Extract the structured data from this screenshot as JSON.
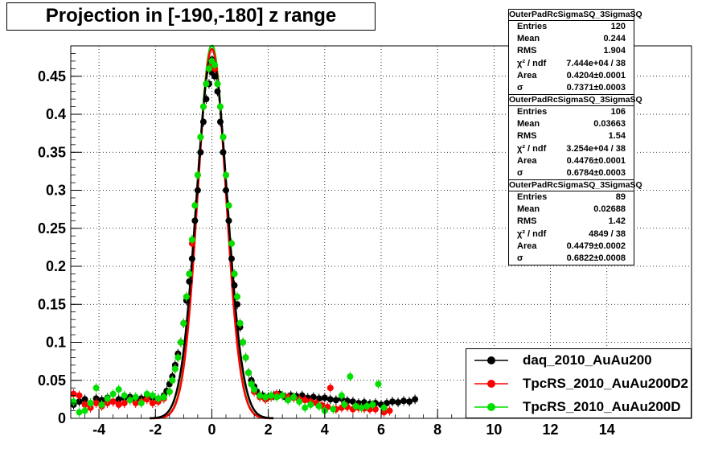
{
  "title": "Projection in [-190,-180] z range",
  "chart_data": {
    "type": "scatter",
    "xlim": [
      -5,
      17
    ],
    "ylim": [
      0,
      0.49
    ],
    "x_ticks": [
      -4,
      -2,
      0,
      2,
      4,
      6,
      8,
      10,
      12,
      14
    ],
    "y_ticks": [
      0,
      0.05,
      0.1,
      0.15,
      0.2,
      0.25,
      0.3,
      0.35,
      0.4,
      0.45
    ],
    "y_tick_labels": [
      "0",
      "0.05",
      "0.1",
      "0.15",
      "0.2",
      "0.25",
      "0.3",
      "0.35",
      "0.4",
      "0.45"
    ],
    "grid": true,
    "legend_position": "bottom-right",
    "series": [
      {
        "name": "daq_2010_AuAu200",
        "color": "#000000",
        "sigma": 0.7371,
        "points": [
          [
            -4.9,
            0.018
          ],
          [
            -4.7,
            0.022
          ],
          [
            -4.5,
            0.025
          ],
          [
            -4.3,
            0.02
          ],
          [
            -4.1,
            0.026
          ],
          [
            -3.9,
            0.024
          ],
          [
            -3.7,
            0.027
          ],
          [
            -3.5,
            0.022
          ],
          [
            -3.3,
            0.025
          ],
          [
            -3.1,
            0.027
          ],
          [
            -2.9,
            0.028
          ],
          [
            -2.7,
            0.024
          ],
          [
            -2.5,
            0.026
          ],
          [
            -2.3,
            0.028
          ],
          [
            -2.1,
            0.027
          ],
          [
            -1.9,
            0.026
          ],
          [
            -1.7,
            0.03
          ],
          [
            -1.6,
            0.036
          ],
          [
            -1.5,
            0.045
          ],
          [
            -1.4,
            0.055
          ],
          [
            -1.3,
            0.07
          ],
          [
            -1.2,
            0.085
          ],
          [
            -1.1,
            0.1
          ],
          [
            -1.0,
            0.125
          ],
          [
            -0.9,
            0.155
          ],
          [
            -0.8,
            0.18
          ],
          [
            -0.7,
            0.21
          ],
          [
            -0.6,
            0.26
          ],
          [
            -0.5,
            0.3
          ],
          [
            -0.4,
            0.35
          ],
          [
            -0.3,
            0.39
          ],
          [
            -0.2,
            0.42
          ],
          [
            -0.1,
            0.44
          ],
          [
            0.0,
            0.455
          ],
          [
            0.1,
            0.45
          ],
          [
            0.2,
            0.43
          ],
          [
            0.3,
            0.39
          ],
          [
            0.4,
            0.35
          ],
          [
            0.5,
            0.3
          ],
          [
            0.6,
            0.26
          ],
          [
            0.7,
            0.21
          ],
          [
            0.8,
            0.175
          ],
          [
            0.9,
            0.15
          ],
          [
            1.0,
            0.12
          ],
          [
            1.1,
            0.1
          ],
          [
            1.2,
            0.08
          ],
          [
            1.3,
            0.06
          ],
          [
            1.4,
            0.05
          ],
          [
            1.5,
            0.042
          ],
          [
            1.6,
            0.035
          ],
          [
            1.8,
            0.03
          ],
          [
            2.0,
            0.028
          ],
          [
            2.2,
            0.03
          ],
          [
            2.4,
            0.032
          ],
          [
            2.6,
            0.028
          ],
          [
            2.8,
            0.03
          ],
          [
            3.0,
            0.029
          ],
          [
            3.2,
            0.03
          ],
          [
            3.4,
            0.027
          ],
          [
            3.6,
            0.028
          ],
          [
            3.8,
            0.026
          ],
          [
            4.0,
            0.027
          ],
          [
            4.2,
            0.025
          ],
          [
            4.4,
            0.024
          ],
          [
            4.6,
            0.026
          ],
          [
            4.8,
            0.023
          ],
          [
            5.0,
            0.022
          ],
          [
            5.2,
            0.02
          ],
          [
            5.4,
            0.021
          ],
          [
            5.6,
            0.019
          ],
          [
            5.8,
            0.02
          ],
          [
            6.0,
            0.018
          ],
          [
            6.2,
            0.02
          ],
          [
            6.4,
            0.022
          ],
          [
            6.6,
            0.021
          ],
          [
            6.8,
            0.023
          ],
          [
            7.0,
            0.022
          ],
          [
            7.2,
            0.025
          ]
        ]
      },
      {
        "name": "TpcRS_2010_AuAu200D2",
        "color": "#ff0000",
        "sigma": 0.6784,
        "points": [
          [
            -4.9,
            0.032
          ],
          [
            -4.7,
            0.03
          ],
          [
            -4.5,
            0.018
          ],
          [
            -4.3,
            0.014
          ],
          [
            -4.1,
            0.02
          ],
          [
            -3.9,
            0.016
          ],
          [
            -3.7,
            0.02
          ],
          [
            -3.5,
            0.022
          ],
          [
            -3.3,
            0.018
          ],
          [
            -3.1,
            0.02
          ],
          [
            -2.9,
            0.024
          ],
          [
            -2.7,
            0.02
          ],
          [
            -2.5,
            0.022
          ],
          [
            -2.3,
            0.025
          ],
          [
            -2.1,
            0.02
          ],
          [
            -1.9,
            0.022
          ],
          [
            -1.7,
            0.026
          ],
          [
            -1.5,
            0.035
          ],
          [
            -1.4,
            0.05
          ],
          [
            -1.3,
            0.065
          ],
          [
            -1.2,
            0.08
          ],
          [
            -1.1,
            0.1
          ],
          [
            -1.0,
            0.125
          ],
          [
            -0.9,
            0.16
          ],
          [
            -0.8,
            0.19
          ],
          [
            -0.7,
            0.23
          ],
          [
            -0.6,
            0.28
          ],
          [
            -0.5,
            0.32
          ],
          [
            -0.4,
            0.37
          ],
          [
            -0.3,
            0.41
          ],
          [
            -0.2,
            0.44
          ],
          [
            -0.1,
            0.46
          ],
          [
            0.0,
            0.465
          ],
          [
            0.1,
            0.46
          ],
          [
            0.2,
            0.44
          ],
          [
            0.3,
            0.41
          ],
          [
            0.4,
            0.37
          ],
          [
            0.5,
            0.32
          ],
          [
            0.6,
            0.28
          ],
          [
            0.7,
            0.23
          ],
          [
            0.8,
            0.19
          ],
          [
            0.9,
            0.16
          ],
          [
            1.0,
            0.125
          ],
          [
            1.1,
            0.1
          ],
          [
            1.2,
            0.08
          ],
          [
            1.3,
            0.06
          ],
          [
            1.4,
            0.045
          ],
          [
            1.5,
            0.035
          ],
          [
            1.7,
            0.028
          ],
          [
            1.9,
            0.025
          ],
          [
            2.1,
            0.028
          ],
          [
            2.3,
            0.032
          ],
          [
            2.5,
            0.03
          ],
          [
            2.7,
            0.028
          ],
          [
            2.9,
            0.027
          ],
          [
            3.1,
            0.025
          ],
          [
            3.3,
            0.024
          ],
          [
            3.5,
            0.022
          ],
          [
            3.7,
            0.02
          ],
          [
            3.9,
            0.017
          ],
          [
            4.1,
            0.015
          ],
          [
            4.2,
            0.04
          ],
          [
            4.4,
            0.012
          ],
          [
            4.6,
            0.014
          ],
          [
            4.8,
            0.015
          ],
          [
            5.0,
            0.012
          ],
          [
            5.2,
            0.014
          ],
          [
            5.4,
            0.013
          ],
          [
            5.6,
            0.012
          ],
          [
            5.8,
            0.012
          ],
          [
            6.1,
            0.008
          ],
          [
            6.3,
            0.01
          ]
        ]
      },
      {
        "name": "TpcRS_2010_AuAu200D",
        "color": "#00e000",
        "sigma": 0.6822,
        "points": [
          [
            -4.9,
            0.022
          ],
          [
            -4.7,
            0.008
          ],
          [
            -4.5,
            0.01
          ],
          [
            -4.3,
            0.02
          ],
          [
            -4.1,
            0.04
          ],
          [
            -3.9,
            0.018
          ],
          [
            -3.7,
            0.026
          ],
          [
            -3.5,
            0.032
          ],
          [
            -3.3,
            0.038
          ],
          [
            -3.1,
            0.03
          ],
          [
            -2.9,
            0.024
          ],
          [
            -2.7,
            0.028
          ],
          [
            -2.5,
            0.02
          ],
          [
            -2.3,
            0.032
          ],
          [
            -2.1,
            0.03
          ],
          [
            -1.9,
            0.026
          ],
          [
            -1.7,
            0.028
          ],
          [
            -1.5,
            0.035
          ],
          [
            -1.4,
            0.05
          ],
          [
            -1.3,
            0.065
          ],
          [
            -1.2,
            0.08
          ],
          [
            -1.1,
            0.1
          ],
          [
            -1.0,
            0.125
          ],
          [
            -0.9,
            0.16
          ],
          [
            -0.8,
            0.19
          ],
          [
            -0.7,
            0.235
          ],
          [
            -0.6,
            0.28
          ],
          [
            -0.5,
            0.32
          ],
          [
            -0.4,
            0.37
          ],
          [
            -0.3,
            0.41
          ],
          [
            -0.2,
            0.44
          ],
          [
            -0.1,
            0.46
          ],
          [
            0.0,
            0.47
          ],
          [
            0.1,
            0.465
          ],
          [
            0.2,
            0.44
          ],
          [
            0.3,
            0.41
          ],
          [
            0.4,
            0.37
          ],
          [
            0.5,
            0.32
          ],
          [
            0.6,
            0.28
          ],
          [
            0.7,
            0.23
          ],
          [
            0.8,
            0.19
          ],
          [
            0.9,
            0.16
          ],
          [
            1.0,
            0.125
          ],
          [
            1.1,
            0.1
          ],
          [
            1.2,
            0.08
          ],
          [
            1.3,
            0.06
          ],
          [
            1.4,
            0.045
          ],
          [
            1.5,
            0.038
          ],
          [
            1.7,
            0.03
          ],
          [
            1.9,
            0.028
          ],
          [
            2.1,
            0.03
          ],
          [
            2.3,
            0.028
          ],
          [
            2.5,
            0.03
          ],
          [
            2.7,
            0.024
          ],
          [
            2.9,
            0.028
          ],
          [
            3.1,
            0.022
          ],
          [
            3.3,
            0.014
          ],
          [
            3.5,
            0.018
          ],
          [
            3.8,
            0.016
          ],
          [
            4.0,
            0.01
          ],
          [
            4.3,
            0.012
          ],
          [
            4.6,
            0.03
          ],
          [
            4.7,
            0.018
          ],
          [
            4.9,
            0.055
          ],
          [
            5.1,
            0.016
          ],
          [
            5.3,
            0.014
          ],
          [
            5.5,
            0.016
          ],
          [
            5.7,
            0.018
          ],
          [
            5.9,
            0.045
          ],
          [
            6.1,
            0.014
          ]
        ]
      }
    ]
  },
  "stats_boxes": [
    {
      "header": "OuterPadRcSigmaSQ_3SigmaSQ",
      "rows": [
        {
          "k": "Entries",
          "v": "120"
        },
        {
          "k": "Mean",
          "v": "0.244"
        },
        {
          "k": "RMS",
          "v": "1.904"
        },
        {
          "k": "χ² / ndf",
          "v": "7.444e+04 / 38"
        },
        {
          "k": "Area",
          "v": "0.4204±0.0001"
        },
        {
          "k": "σ",
          "v": "0.7371±0.0003"
        }
      ]
    },
    {
      "header": "OuterPadRcSigmaSQ_3SigmaSQ",
      "rows": [
        {
          "k": "Entries",
          "v": "106"
        },
        {
          "k": "Mean",
          "v": "0.03663"
        },
        {
          "k": "RMS",
          "v": "1.54"
        },
        {
          "k": "χ² / ndf",
          "v": "3.254e+04 / 38"
        },
        {
          "k": "Area",
          "v": "0.4476±0.0001"
        },
        {
          "k": "σ",
          "v": "0.6784±0.0003"
        }
      ]
    },
    {
      "header": "OuterPadRcSigmaSQ_3SigmaSQ",
      "rows": [
        {
          "k": "Entries",
          "v": "89"
        },
        {
          "k": "Mean",
          "v": "0.02688"
        },
        {
          "k": "RMS",
          "v": "1.42"
        },
        {
          "k": "χ² / ndf",
          "v": "4849 / 38"
        },
        {
          "k": "Area",
          "v": "0.4479±0.0002"
        },
        {
          "k": "σ",
          "v": "0.6822±0.0008"
        }
      ]
    }
  ],
  "legend": [
    {
      "label": "daq_2010_AuAu200",
      "color": "#000000"
    },
    {
      "label": "TpcRS_2010_AuAu200D2",
      "color": "#ff0000"
    },
    {
      "label": "TpcRS_2010_AuAu200D",
      "color": "#00e000"
    }
  ]
}
